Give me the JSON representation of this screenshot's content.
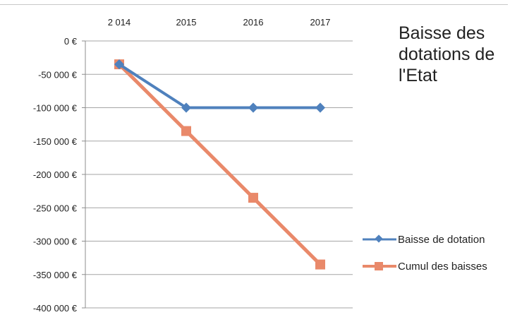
{
  "chart_data": {
    "type": "line",
    "title": "Baisse des dotations de l'Etat",
    "categories": [
      "2 014",
      "2015",
      "2016",
      "2017"
    ],
    "x_axis_position": "top",
    "ylim": [
      -400000,
      0
    ],
    "yticks": [
      0,
      -50000,
      -100000,
      -150000,
      -200000,
      -250000,
      -300000,
      -350000,
      -400000
    ],
    "ytick_labels": [
      "0 €",
      "-50 000 €",
      "-100 000 €",
      "-150 000 €",
      "-200 000 €",
      "-250 000 €",
      "-300 000 €",
      "-350 000 €",
      "-400 000 €"
    ],
    "grid": true,
    "legend_position": "right",
    "series": [
      {
        "name": "Baisse de dotation",
        "values": [
          -35000,
          -100000,
          -100000,
          -100000
        ],
        "color": "#4f81bd",
        "marker": "diamond"
      },
      {
        "name": "Cumul des baisses",
        "values": [
          -35000,
          -135000,
          -235000,
          -335000
        ],
        "color": "#e9896a",
        "marker": "square"
      }
    ]
  }
}
